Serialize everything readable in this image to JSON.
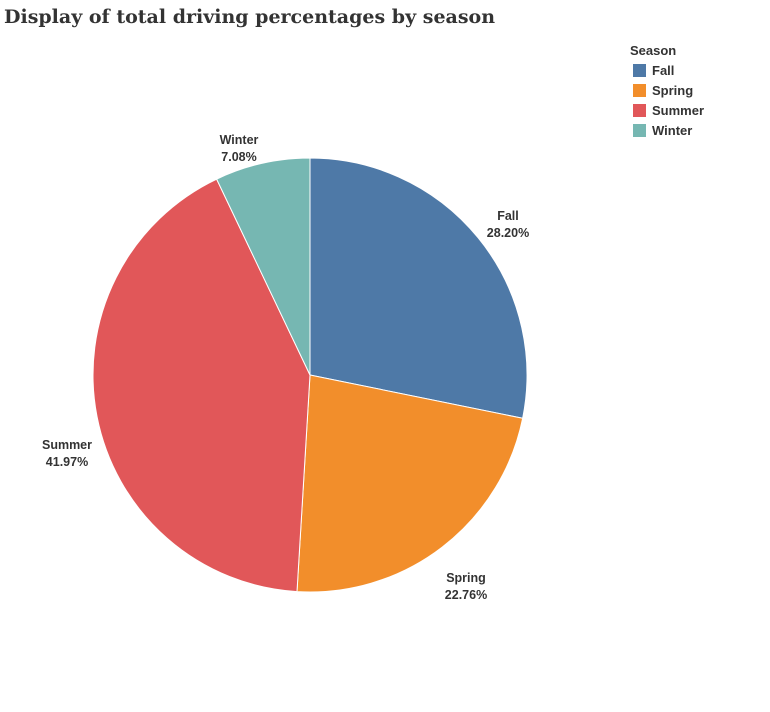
{
  "chart_data": {
    "type": "pie",
    "title": "Display of total driving percentages by season",
    "legend_title": "Season",
    "legend_position": "top-right",
    "categories": [
      "Fall",
      "Spring",
      "Summer",
      "Winter"
    ],
    "values": [
      28.2,
      22.76,
      41.97,
      7.08
    ],
    "value_labels": [
      "28.20%",
      "22.76%",
      "41.97%",
      "7.08%"
    ],
    "colors": [
      "#4e79a7",
      "#f28e2b",
      "#e15759",
      "#76b7b2"
    ]
  }
}
